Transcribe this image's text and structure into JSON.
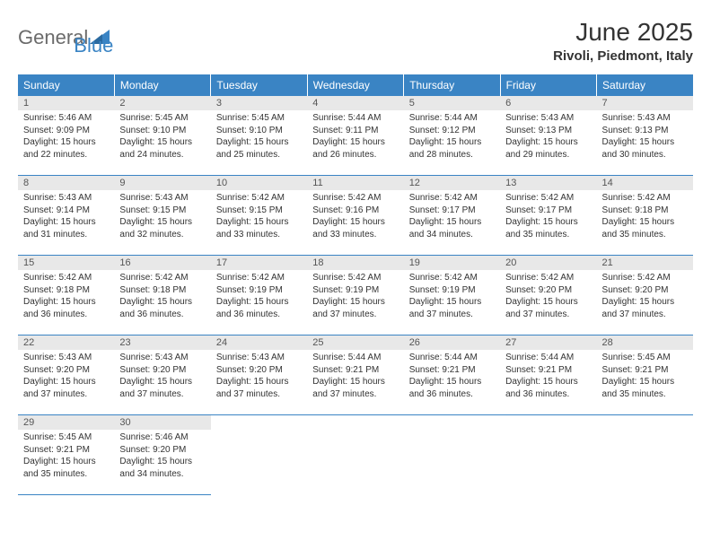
{
  "logo": {
    "text1": "General",
    "text2": "Blue",
    "color_gray": "#6b6b6b",
    "color_blue": "#3a84c4"
  },
  "title": "June 2025",
  "location": "Rivoli, Piedmont, Italy",
  "header_bg": "#3a84c4",
  "daynum_bg": "#e8e8e8",
  "border_color": "#3a84c4",
  "day_headers": [
    "Sunday",
    "Monday",
    "Tuesday",
    "Wednesday",
    "Thursday",
    "Friday",
    "Saturday"
  ],
  "weeks": [
    [
      {
        "n": "1",
        "sunrise": "Sunrise: 5:46 AM",
        "sunset": "Sunset: 9:09 PM",
        "daylight": "Daylight: 15 hours and 22 minutes."
      },
      {
        "n": "2",
        "sunrise": "Sunrise: 5:45 AM",
        "sunset": "Sunset: 9:10 PM",
        "daylight": "Daylight: 15 hours and 24 minutes."
      },
      {
        "n": "3",
        "sunrise": "Sunrise: 5:45 AM",
        "sunset": "Sunset: 9:10 PM",
        "daylight": "Daylight: 15 hours and 25 minutes."
      },
      {
        "n": "4",
        "sunrise": "Sunrise: 5:44 AM",
        "sunset": "Sunset: 9:11 PM",
        "daylight": "Daylight: 15 hours and 26 minutes."
      },
      {
        "n": "5",
        "sunrise": "Sunrise: 5:44 AM",
        "sunset": "Sunset: 9:12 PM",
        "daylight": "Daylight: 15 hours and 28 minutes."
      },
      {
        "n": "6",
        "sunrise": "Sunrise: 5:43 AM",
        "sunset": "Sunset: 9:13 PM",
        "daylight": "Daylight: 15 hours and 29 minutes."
      },
      {
        "n": "7",
        "sunrise": "Sunrise: 5:43 AM",
        "sunset": "Sunset: 9:13 PM",
        "daylight": "Daylight: 15 hours and 30 minutes."
      }
    ],
    [
      {
        "n": "8",
        "sunrise": "Sunrise: 5:43 AM",
        "sunset": "Sunset: 9:14 PM",
        "daylight": "Daylight: 15 hours and 31 minutes."
      },
      {
        "n": "9",
        "sunrise": "Sunrise: 5:43 AM",
        "sunset": "Sunset: 9:15 PM",
        "daylight": "Daylight: 15 hours and 32 minutes."
      },
      {
        "n": "10",
        "sunrise": "Sunrise: 5:42 AM",
        "sunset": "Sunset: 9:15 PM",
        "daylight": "Daylight: 15 hours and 33 minutes."
      },
      {
        "n": "11",
        "sunrise": "Sunrise: 5:42 AM",
        "sunset": "Sunset: 9:16 PM",
        "daylight": "Daylight: 15 hours and 33 minutes."
      },
      {
        "n": "12",
        "sunrise": "Sunrise: 5:42 AM",
        "sunset": "Sunset: 9:17 PM",
        "daylight": "Daylight: 15 hours and 34 minutes."
      },
      {
        "n": "13",
        "sunrise": "Sunrise: 5:42 AM",
        "sunset": "Sunset: 9:17 PM",
        "daylight": "Daylight: 15 hours and 35 minutes."
      },
      {
        "n": "14",
        "sunrise": "Sunrise: 5:42 AM",
        "sunset": "Sunset: 9:18 PM",
        "daylight": "Daylight: 15 hours and 35 minutes."
      }
    ],
    [
      {
        "n": "15",
        "sunrise": "Sunrise: 5:42 AM",
        "sunset": "Sunset: 9:18 PM",
        "daylight": "Daylight: 15 hours and 36 minutes."
      },
      {
        "n": "16",
        "sunrise": "Sunrise: 5:42 AM",
        "sunset": "Sunset: 9:18 PM",
        "daylight": "Daylight: 15 hours and 36 minutes."
      },
      {
        "n": "17",
        "sunrise": "Sunrise: 5:42 AM",
        "sunset": "Sunset: 9:19 PM",
        "daylight": "Daylight: 15 hours and 36 minutes."
      },
      {
        "n": "18",
        "sunrise": "Sunrise: 5:42 AM",
        "sunset": "Sunset: 9:19 PM",
        "daylight": "Daylight: 15 hours and 37 minutes."
      },
      {
        "n": "19",
        "sunrise": "Sunrise: 5:42 AM",
        "sunset": "Sunset: 9:19 PM",
        "daylight": "Daylight: 15 hours and 37 minutes."
      },
      {
        "n": "20",
        "sunrise": "Sunrise: 5:42 AM",
        "sunset": "Sunset: 9:20 PM",
        "daylight": "Daylight: 15 hours and 37 minutes."
      },
      {
        "n": "21",
        "sunrise": "Sunrise: 5:42 AM",
        "sunset": "Sunset: 9:20 PM",
        "daylight": "Daylight: 15 hours and 37 minutes."
      }
    ],
    [
      {
        "n": "22",
        "sunrise": "Sunrise: 5:43 AM",
        "sunset": "Sunset: 9:20 PM",
        "daylight": "Daylight: 15 hours and 37 minutes."
      },
      {
        "n": "23",
        "sunrise": "Sunrise: 5:43 AM",
        "sunset": "Sunset: 9:20 PM",
        "daylight": "Daylight: 15 hours and 37 minutes."
      },
      {
        "n": "24",
        "sunrise": "Sunrise: 5:43 AM",
        "sunset": "Sunset: 9:20 PM",
        "daylight": "Daylight: 15 hours and 37 minutes."
      },
      {
        "n": "25",
        "sunrise": "Sunrise: 5:44 AM",
        "sunset": "Sunset: 9:21 PM",
        "daylight": "Daylight: 15 hours and 37 minutes."
      },
      {
        "n": "26",
        "sunrise": "Sunrise: 5:44 AM",
        "sunset": "Sunset: 9:21 PM",
        "daylight": "Daylight: 15 hours and 36 minutes."
      },
      {
        "n": "27",
        "sunrise": "Sunrise: 5:44 AM",
        "sunset": "Sunset: 9:21 PM",
        "daylight": "Daylight: 15 hours and 36 minutes."
      },
      {
        "n": "28",
        "sunrise": "Sunrise: 5:45 AM",
        "sunset": "Sunset: 9:21 PM",
        "daylight": "Daylight: 15 hours and 35 minutes."
      }
    ],
    [
      {
        "n": "29",
        "sunrise": "Sunrise: 5:45 AM",
        "sunset": "Sunset: 9:21 PM",
        "daylight": "Daylight: 15 hours and 35 minutes."
      },
      {
        "n": "30",
        "sunrise": "Sunrise: 5:46 AM",
        "sunset": "Sunset: 9:20 PM",
        "daylight": "Daylight: 15 hours and 34 minutes."
      },
      null,
      null,
      null,
      null,
      null
    ]
  ]
}
